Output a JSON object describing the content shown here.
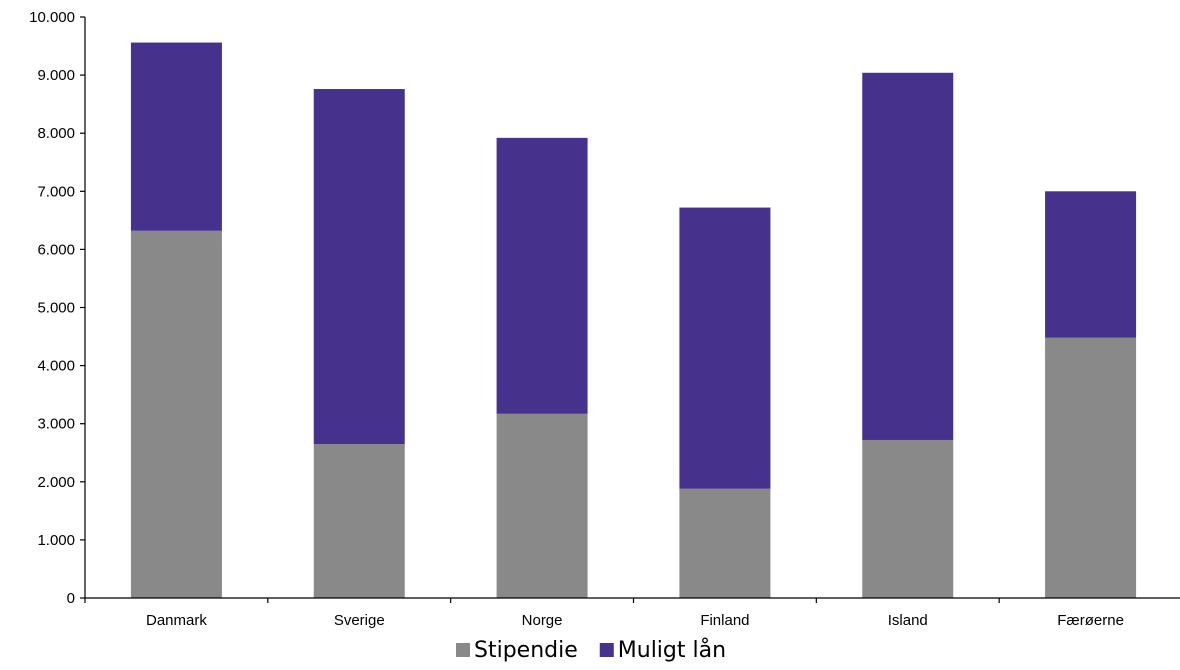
{
  "chart_data": {
    "type": "bar",
    "stacked": true,
    "title": "",
    "xlabel": "",
    "ylabel": "",
    "categories": [
      "Danmark",
      "Sverige",
      "Norge",
      "Finland",
      "Island",
      "Færøerne"
    ],
    "series": [
      {
        "name": "Stipendie",
        "color": "#898989",
        "values": [
          6320,
          2650,
          3170,
          1880,
          2720,
          4480
        ]
      },
      {
        "name": "Muligt lån",
        "color": "#46318c",
        "values": [
          3240,
          6110,
          4750,
          4840,
          6320,
          2520
        ]
      }
    ],
    "ylim": [
      0,
      10000
    ],
    "yticks": [
      0,
      1000,
      2000,
      3000,
      4000,
      5000,
      6000,
      7000,
      8000,
      9000,
      10000
    ],
    "ytick_labels": [
      "0",
      "1.000",
      "2.000",
      "3.000",
      "4.000",
      "5.000",
      "6.000",
      "7.000",
      "8.000",
      "9.000",
      "10.000"
    ],
    "grid": false,
    "legend_position": "bottom-center"
  }
}
